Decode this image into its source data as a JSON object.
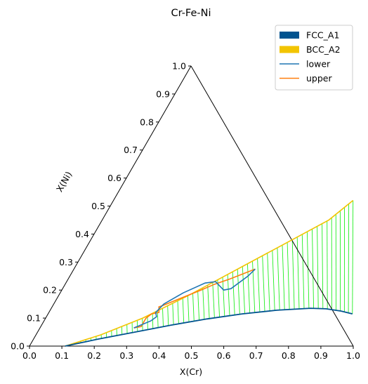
{
  "chart_data": {
    "type": "ternary-phase-diagram",
    "title": "Cr-Fe-Ni",
    "xlabel": "X(Cr)",
    "ylabel": "X(Ni)",
    "xlim": [
      0.0,
      1.0
    ],
    "ylim": [
      0.0,
      1.0
    ],
    "xticks": [
      "0.0",
      "0.1",
      "0.2",
      "0.3",
      "0.4",
      "0.5",
      "0.6",
      "0.7",
      "0.8",
      "0.9",
      "1.0"
    ],
    "yticks": [
      "0.0",
      "0.1",
      "0.2",
      "0.3",
      "0.4",
      "0.5",
      "0.6",
      "0.7",
      "0.8",
      "0.9",
      "1.0"
    ],
    "legend": {
      "position": "top-right",
      "entries": [
        {
          "label": "FCC_A1",
          "kind": "patch",
          "color": "#00538f"
        },
        {
          "label": "BCC_A2",
          "kind": "patch",
          "color": "#f2c400"
        },
        {
          "label": "lower",
          "kind": "line",
          "color": "#1f77b4"
        },
        {
          "label": "upper",
          "kind": "line",
          "color": "#ff7f0e"
        }
      ]
    },
    "colors": {
      "fcc_boundary": "#00538f",
      "bcc_boundary": "#f2c400",
      "tielines": "#22ee22",
      "lower": "#1f77b4",
      "upper": "#ff7f0e"
    },
    "fcc_boundary": [
      [
        0.11,
        0.0
      ],
      [
        0.2,
        0.025
      ],
      [
        0.3,
        0.05
      ],
      [
        0.4,
        0.075
      ],
      [
        0.5,
        0.097
      ],
      [
        0.6,
        0.115
      ],
      [
        0.7,
        0.128
      ],
      [
        0.8,
        0.135
      ],
      [
        0.85,
        0.133
      ],
      [
        0.9,
        0.125
      ],
      [
        0.94,
        0.115
      ]
    ],
    "bcc_boundary": [
      [
        0.11,
        0.0
      ],
      [
        0.2,
        0.04
      ],
      [
        0.3,
        0.1
      ],
      [
        0.4,
        0.18
      ],
      [
        0.5,
        0.27
      ],
      [
        0.6,
        0.36
      ],
      [
        0.7,
        0.45
      ],
      [
        0.74,
        0.52
      ]
    ],
    "tieline_count": 58,
    "lower_curve": [
      [
        0.29,
        0.065
      ],
      [
        0.33,
        0.09
      ],
      [
        0.34,
        0.105
      ],
      [
        0.33,
        0.12
      ],
      [
        0.34,
        0.15
      ],
      [
        0.38,
        0.19
      ],
      [
        0.43,
        0.225
      ],
      [
        0.46,
        0.23
      ],
      [
        0.48,
        0.215
      ],
      [
        0.5,
        0.2
      ],
      [
        0.52,
        0.205
      ],
      [
        0.55,
        0.25
      ],
      [
        0.56,
        0.275
      ]
    ],
    "upper_curve": [
      [
        0.29,
        0.065
      ],
      [
        0.31,
        0.07
      ],
      [
        0.31,
        0.1
      ],
      [
        0.32,
        0.115
      ],
      [
        0.34,
        0.12
      ],
      [
        0.33,
        0.14
      ],
      [
        0.34,
        0.145
      ],
      [
        0.38,
        0.17
      ],
      [
        0.43,
        0.2
      ],
      [
        0.46,
        0.22
      ],
      [
        0.5,
        0.24
      ],
      [
        0.56,
        0.275
      ]
    ]
  }
}
